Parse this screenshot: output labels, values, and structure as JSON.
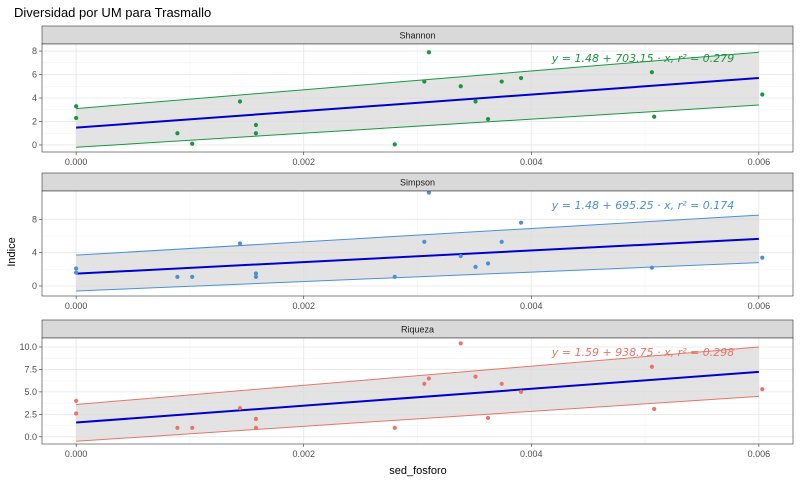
{
  "chart_data": {
    "type": "scatter",
    "title": "Diversidad por UM para Trasmallo",
    "xlabel": "sed_fosforo",
    "ylabel": "Indice",
    "xlim": [
      -0.0003,
      0.0063
    ],
    "x_ticks": [
      "0.000",
      "0.002",
      "0.004",
      "0.006"
    ],
    "x_tick_values": [
      0,
      0.002,
      0.004,
      0.006
    ],
    "grid": true,
    "panels": [
      {
        "name": "Shannon",
        "color": "#1a9641",
        "ylim": [
          -0.6,
          8.6
        ],
        "y_ticks": [
          "0",
          "2",
          "4",
          "6",
          "8"
        ],
        "y_tick_values": [
          0,
          2,
          4,
          6,
          8
        ],
        "equation": "y = 1.48 + 703.15 · x,  r² = 0.279",
        "fit": {
          "intercept": 1.48,
          "slope": 703.15
        },
        "ci_lower": [
          [
            0,
            -0.2
          ],
          [
            0.006,
            3.4
          ]
        ],
        "ci_upper": [
          [
            0,
            3.1
          ],
          [
            0.006,
            7.9
          ]
        ],
        "points": [
          [
            0,
            3.3
          ],
          [
            0,
            2.3
          ],
          [
            0.00089,
            1.0
          ],
          [
            0.00102,
            0.1
          ],
          [
            0.00144,
            3.7
          ],
          [
            0.00158,
            1.7
          ],
          [
            0.00158,
            1.0
          ],
          [
            0.0028,
            0.05
          ],
          [
            0.00306,
            5.4
          ],
          [
            0.0031,
            7.9
          ],
          [
            0.00338,
            5.0
          ],
          [
            0.00351,
            3.7
          ],
          [
            0.00362,
            2.2
          ],
          [
            0.00374,
            5.4
          ],
          [
            0.00391,
            5.7
          ],
          [
            0.00506,
            6.2
          ],
          [
            0.00508,
            2.4
          ],
          [
            0.00603,
            4.3
          ]
        ]
      },
      {
        "name": "Simpson",
        "color": "#4a90d9",
        "ylim": [
          -1.2,
          11.4
        ],
        "y_ticks": [
          "0",
          "4",
          "8"
        ],
        "y_tick_values": [
          0,
          4,
          8
        ],
        "equation": "y = 1.48 + 695.25 · x,  r² = 0.174",
        "fit": {
          "intercept": 1.48,
          "slope": 695.25
        },
        "ci_lower": [
          [
            0,
            -0.6
          ],
          [
            0.006,
            2.8
          ]
        ],
        "ci_upper": [
          [
            0,
            3.7
          ],
          [
            0.006,
            8.5
          ]
        ],
        "points": [
          [
            0,
            2.1
          ],
          [
            0,
            1.6
          ],
          [
            0.00089,
            1.1
          ],
          [
            0.00102,
            1.1
          ],
          [
            0.00144,
            5.1
          ],
          [
            0.00158,
            1.5
          ],
          [
            0.00158,
            1.1
          ],
          [
            0.0028,
            1.1
          ],
          [
            0.00306,
            5.3
          ],
          [
            0.0031,
            11.2
          ],
          [
            0.00338,
            3.6
          ],
          [
            0.00351,
            2.3
          ],
          [
            0.00362,
            2.7
          ],
          [
            0.00374,
            5.3
          ],
          [
            0.00391,
            7.6
          ],
          [
            0.00506,
            2.2
          ],
          [
            0.00603,
            3.4
          ]
        ]
      },
      {
        "name": "Riqueza",
        "color": "#e8756a",
        "ylim": [
          -0.8,
          11.0
        ],
        "y_ticks": [
          "0.0",
          "2.5",
          "5.0",
          "7.5",
          "10.0"
        ],
        "y_tick_values": [
          0,
          2.5,
          5,
          7.5,
          10
        ],
        "equation": "y = 1.59 + 938.75 · x,  r² = 0.298",
        "fit": {
          "intercept": 1.59,
          "slope": 938.75
        },
        "ci_lower": [
          [
            0,
            -0.5
          ],
          [
            0.006,
            4.5
          ]
        ],
        "ci_upper": [
          [
            0,
            3.6
          ],
          [
            0.006,
            10.0
          ]
        ],
        "points": [
          [
            0,
            4.0
          ],
          [
            0,
            2.6
          ],
          [
            0.00089,
            1.0
          ],
          [
            0.00102,
            1.0
          ],
          [
            0.00144,
            3.2
          ],
          [
            0.00158,
            2.0
          ],
          [
            0.00158,
            1.0
          ],
          [
            0.0028,
            1.0
          ],
          [
            0.00306,
            5.9
          ],
          [
            0.0031,
            6.5
          ],
          [
            0.00338,
            10.4
          ],
          [
            0.00351,
            6.7
          ],
          [
            0.00362,
            2.1
          ],
          [
            0.00374,
            5.9
          ],
          [
            0.00391,
            5.0
          ],
          [
            0.00506,
            7.8
          ],
          [
            0.00508,
            3.1
          ],
          [
            0.00603,
            5.3
          ]
        ]
      }
    ],
    "fit_line_color": "#0000cc",
    "ribbon_color": "#d9d9d9"
  }
}
